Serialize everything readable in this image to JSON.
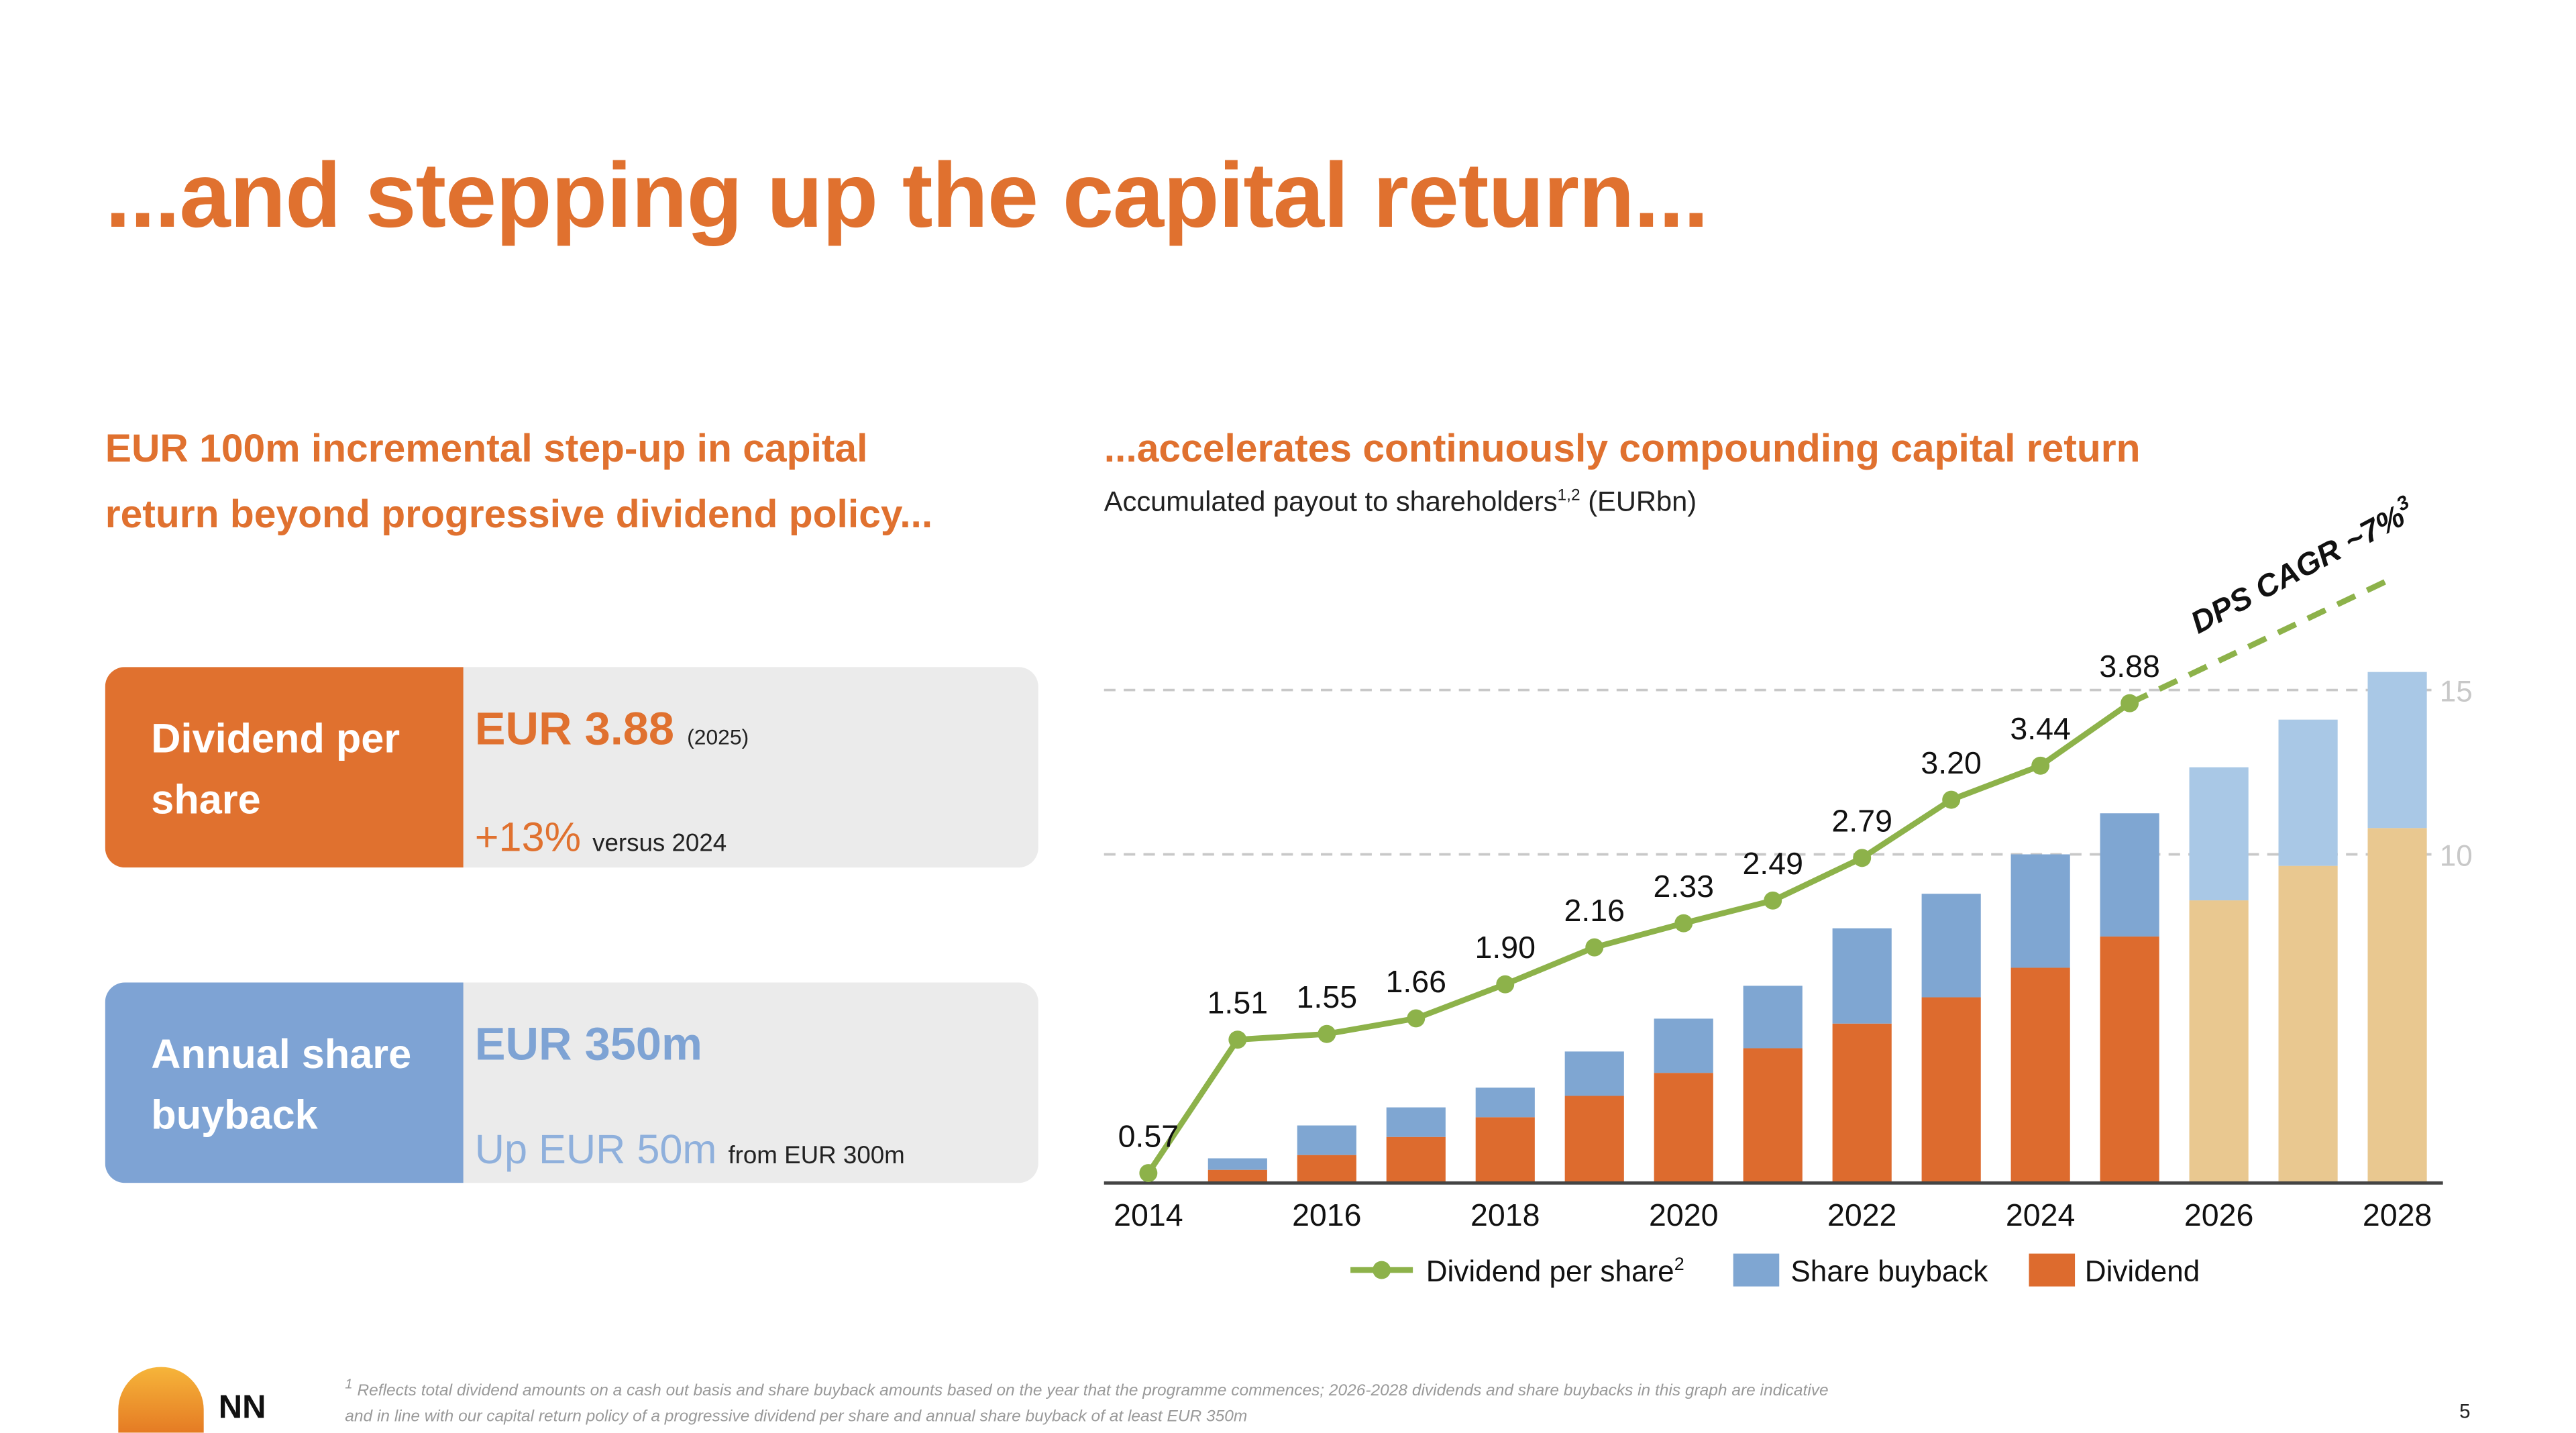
{
  "title": "...and stepping up the capital return...",
  "left": {
    "heading": [
      "EUR 100m incremental step-up in capital",
      "return beyond progressive dividend policy..."
    ],
    "dividend_card": {
      "label": "Dividend per share",
      "value": "EUR 3.88",
      "value_note": "(2025)",
      "change": "+13%",
      "change_note": "versus 2024"
    },
    "buyback_card": {
      "label": "Annual share buyback",
      "value": "EUR 350m",
      "change": "Up EUR 50m",
      "change_note": "from EUR 300m"
    }
  },
  "right": {
    "heading": "...accelerates continuously compounding capital return",
    "subtitle": "Accumulated payout to shareholders",
    "subtitle_sup": "1,2",
    "subtitle_unit": "(EURbn)"
  },
  "chart_data": {
    "type": "bar",
    "stacked": true,
    "categories": [
      2014,
      2015,
      2016,
      2017,
      2018,
      2019,
      2020,
      2021,
      2022,
      2023,
      2024,
      2025,
      2026,
      2027,
      2028
    ],
    "x_tick_labels": [
      "2014",
      "2016",
      "2018",
      "2020",
      "2022",
      "2024",
      "2026",
      "2028"
    ],
    "y_tick_labels": [
      "10",
      "15"
    ],
    "ylim": [
      0,
      16
    ],
    "grid": "dashed at 10 and 15",
    "legend_placement": "bottom",
    "series": [
      {
        "name": "Dividend",
        "color": "#dd6b2e",
        "indicative_color": "#e9c890",
        "values": [
          0,
          0.4,
          0.85,
          1.4,
          2.0,
          2.65,
          3.35,
          4.1,
          4.85,
          5.65,
          6.55,
          7.5,
          8.6,
          9.65,
          10.8
        ]
      },
      {
        "name": "Share buyback",
        "color": "#7fa6d2",
        "indicative_color": "#a9c8e6",
        "values": [
          0,
          0.35,
          0.9,
          0.9,
          0.9,
          1.35,
          1.65,
          1.9,
          2.9,
          3.15,
          3.45,
          3.75,
          4.05,
          4.45,
          4.75
        ]
      }
    ],
    "indicative_from": 2026,
    "line": {
      "name": "Dividend per share",
      "name_sup": "2",
      "color": "#8db24a",
      "x": [
        2014,
        2015,
        2016,
        2017,
        2018,
        2019,
        2020,
        2021,
        2022,
        2023,
        2024,
        2025
      ],
      "values": [
        0.57,
        1.51,
        1.55,
        1.66,
        1.9,
        2.16,
        2.33,
        2.49,
        2.79,
        3.2,
        3.44,
        3.88
      ],
      "labels": [
        "0.57",
        "1.51",
        "1.55",
        "1.66",
        "1.90",
        "2.16",
        "2.33",
        "2.49",
        "2.79",
        "3.20",
        "3.44",
        "3.88"
      ]
    },
    "annotation": "DPS CAGR ~7%",
    "annotation_sup": "3"
  },
  "footnote": [
    "Reflects total dividend amounts on a cash out basis and share buyback amounts based on the year that the programme commences; 2026-2028 dividends and share buybacks in this graph are indicative",
    "and in line with our capital return policy of a progressive dividend per share and annual share buyback of at least EUR 350m"
  ],
  "footnote_sup": "1",
  "logo_text": "NN",
  "page_number": "5",
  "colors": {
    "accent": "#e0712f",
    "buyback_card": "#7ea3d4",
    "dps_line": "#8db24a"
  }
}
